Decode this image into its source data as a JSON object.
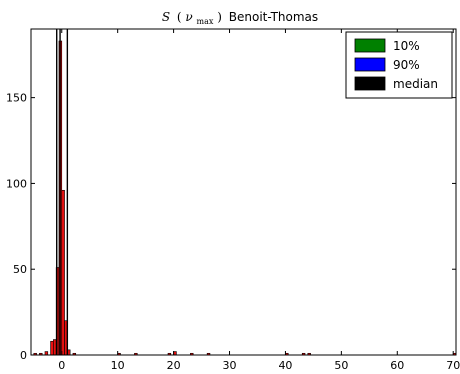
{
  "chart_data": {
    "type": "bar",
    "title": {
      "symbol": "S",
      "paren_open": "(",
      "nu": "ν",
      "sub": "max",
      "paren_close": ")",
      "rest": "Benoit-Thomas"
    },
    "xlabel": "",
    "ylabel": "",
    "xlim": [
      -5.5,
      70.5
    ],
    "ylim": [
      0,
      190
    ],
    "xticks": [
      0,
      10,
      20,
      30,
      40,
      50,
      60,
      70
    ],
    "yticks": [
      0,
      50,
      100,
      150
    ],
    "grid": false,
    "bin_width": 1,
    "bar_color": "#e81010",
    "bars": [
      {
        "x": -5,
        "y": 1
      },
      {
        "x": -4,
        "y": 1
      },
      {
        "x": -3,
        "y": 2
      },
      {
        "x": -2,
        "y": 8
      },
      {
        "x": -1.5,
        "y": 9
      },
      {
        "x": -1,
        "y": 51
      },
      {
        "x": -0.5,
        "y": 183
      },
      {
        "x": 0,
        "y": 96
      },
      {
        "x": 0.5,
        "y": 20
      },
      {
        "x": 1,
        "y": 3
      },
      {
        "x": 2,
        "y": 1
      },
      {
        "x": 10,
        "y": 1
      },
      {
        "x": 13,
        "y": 1
      },
      {
        "x": 19,
        "y": 1
      },
      {
        "x": 20,
        "y": 2
      },
      {
        "x": 23,
        "y": 1
      },
      {
        "x": 26,
        "y": 1
      },
      {
        "x": 40,
        "y": 1
      },
      {
        "x": 43,
        "y": 1
      },
      {
        "x": 44,
        "y": 1
      },
      {
        "x": 70,
        "y": 1
      }
    ],
    "vlines": [
      {
        "name": "10%",
        "x": -0.9,
        "color": "#008000"
      },
      {
        "name": "90%",
        "x": 1.0,
        "color": "#0000ff"
      },
      {
        "name": "median",
        "x": -0.3,
        "color": "#000000"
      }
    ],
    "legend": {
      "placement": "top-right",
      "entries": [
        {
          "label": "10%",
          "color": "#008000"
        },
        {
          "label": "90%",
          "color": "#0000ff"
        },
        {
          "label": "median",
          "color": "#000000"
        }
      ]
    }
  }
}
